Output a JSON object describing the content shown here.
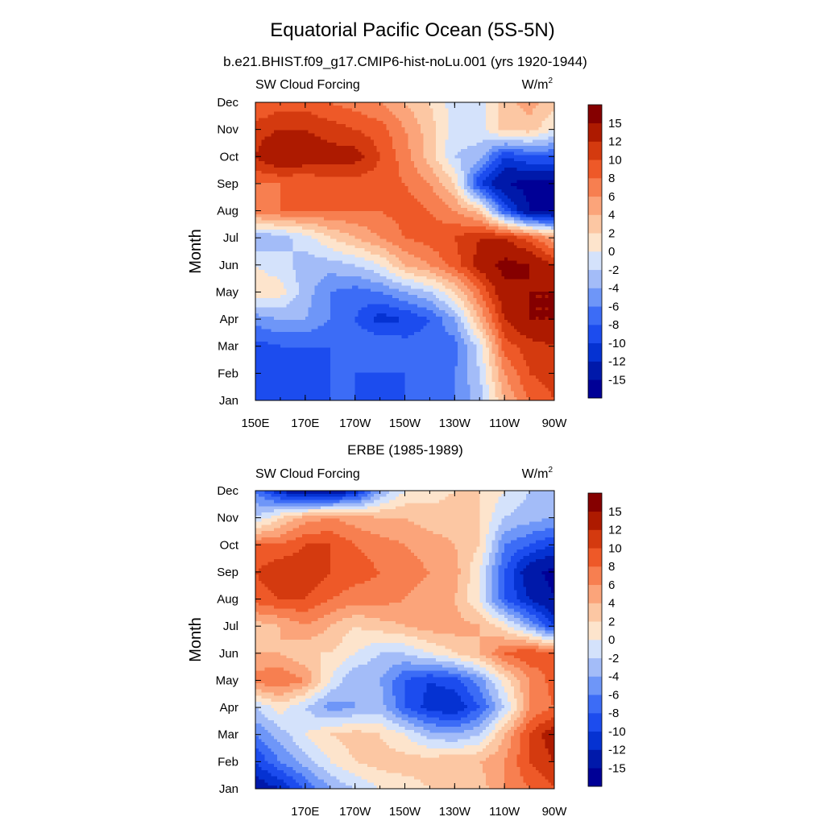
{
  "figure": {
    "title": "Equatorial Pacific Ocean (5S-5N)"
  },
  "chart_data": [
    {
      "type": "heatmap",
      "title": "b.e21.BHIST.f09_g17.CMIP6-hist-noLu.001 (yrs 1920-1944)",
      "left_label": "SW Cloud Forcing",
      "units": "W/m",
      "units_sup": "2",
      "ylabel": "Month",
      "xlabel": "",
      "x_ticks": [
        "150E",
        "170E",
        "170W",
        "150W",
        "130W",
        "110W",
        "90W"
      ],
      "x_tick_lon": [
        150,
        170,
        190,
        210,
        230,
        250,
        270
      ],
      "xlim_lon": [
        150,
        270
      ],
      "y_ticks": [
        "Jan",
        "Feb",
        "Mar",
        "Apr",
        "May",
        "Jun",
        "Jul",
        "Aug",
        "Sep",
        "Oct",
        "Nov",
        "Dec"
      ],
      "lon_grid": [
        150,
        160,
        170,
        180,
        190,
        200,
        210,
        220,
        230,
        240,
        250,
        260,
        270
      ],
      "values": [
        [
          -9,
          -10,
          -9,
          -8,
          -8,
          -9,
          -8,
          -8,
          -6,
          -3,
          4,
          8,
          10
        ],
        [
          -9,
          -10,
          -9,
          -8,
          -8,
          -8,
          -8,
          -8,
          -6,
          -2,
          6,
          10,
          11
        ],
        [
          -9,
          -8,
          -8,
          -8,
          -6,
          -6,
          -7,
          -7,
          -7,
          -1,
          9,
          11,
          12
        ],
        [
          -5,
          -4,
          -4,
          -6,
          -8,
          -11,
          -10,
          -8,
          -4,
          4,
          12,
          15,
          15
        ],
        [
          1,
          1,
          -3,
          -6,
          -7,
          -6,
          -4,
          -2,
          2,
          8,
          14,
          15,
          15
        ],
        [
          0,
          -1,
          -3,
          -3,
          -2,
          0,
          4,
          6,
          9,
          13,
          16,
          15,
          12
        ],
        [
          -4,
          -3,
          -1,
          2,
          4,
          6,
          8,
          9,
          10,
          12,
          12,
          9,
          5
        ],
        [
          7,
          8,
          8,
          8,
          8,
          8,
          9,
          8,
          6,
          3,
          -8,
          -15,
          -16
        ],
        [
          8,
          8,
          8,
          9,
          9,
          9,
          8,
          6,
          2,
          -10,
          -15,
          -16,
          -16
        ],
        [
          12,
          15,
          14,
          13,
          13,
          10,
          7,
          3,
          -2,
          -3,
          -10,
          -8,
          -8
        ],
        [
          11,
          12,
          12,
          11,
          10,
          9,
          6,
          3,
          -1,
          -1,
          3,
          3,
          0
        ],
        [
          8,
          9,
          9,
          8,
          7,
          6,
          4,
          2,
          -1,
          -1,
          3,
          5,
          3
        ]
      ],
      "contour_levels": [
        -15,
        -12,
        -10,
        -8,
        -6,
        -4,
        -2,
        0,
        2,
        4,
        6,
        8,
        10,
        12,
        15
      ],
      "colorbar_colors": [
        "#000096",
        "#0019aa",
        "#0532d2",
        "#1c4cee",
        "#3c6cf6",
        "#6e96f8",
        "#a3bcf8",
        "#d4e2fb",
        "#fde4cc",
        "#fcc7a3",
        "#fba47a",
        "#f77f50",
        "#ee5928",
        "#d43a0f",
        "#ad1a00",
        "#850000"
      ]
    },
    {
      "type": "heatmap",
      "title": "ERBE (1985-1989)",
      "left_label": "SW Cloud Forcing",
      "units": "W/m",
      "units_sup": "2",
      "ylabel": "Month",
      "xlabel": "",
      "x_ticks": [
        "170E",
        "170W",
        "150W",
        "130W",
        "110W",
        "90W"
      ],
      "x_tick_lon": [
        170,
        190,
        210,
        230,
        250,
        270
      ],
      "xlim_lon": [
        150,
        270
      ],
      "y_ticks": [
        "Jan",
        "Feb",
        "Mar",
        "Apr",
        "May",
        "Jun",
        "Jul",
        "Aug",
        "Sep",
        "Oct",
        "Nov",
        "Dec"
      ],
      "lon_grid": [
        150,
        160,
        170,
        180,
        190,
        200,
        210,
        220,
        230,
        240,
        250,
        260,
        270
      ],
      "values": [
        [
          -14,
          -12,
          -8,
          -4,
          -2,
          0,
          1,
          2,
          4,
          3,
          6,
          8,
          10
        ],
        [
          -10,
          -6,
          -3,
          0,
          2,
          3,
          3,
          3,
          4,
          4,
          6,
          10,
          12
        ],
        [
          -6,
          -3,
          0,
          2,
          3,
          2,
          0,
          -3,
          -4,
          -2,
          4,
          10,
          14
        ],
        [
          -2,
          1,
          -2,
          -5,
          -4,
          -3,
          -8,
          -11,
          -12,
          -8,
          -2,
          6,
          8
        ],
        [
          7,
          8,
          6,
          0,
          -4,
          -4,
          -8,
          -10,
          -9,
          -5,
          1,
          6,
          9
        ],
        [
          4,
          4,
          2,
          2,
          0,
          -2,
          -2,
          0,
          2,
          4,
          8,
          10,
          8
        ],
        [
          3,
          4,
          6,
          4,
          2,
          3,
          4,
          5,
          5,
          4,
          1,
          -4,
          -10
        ],
        [
          9,
          10,
          10,
          8,
          7,
          7,
          6,
          5,
          4,
          0,
          -8,
          -12,
          -15
        ],
        [
          10,
          12,
          12,
          10,
          9,
          8,
          7,
          6,
          5,
          0,
          -8,
          -14,
          -16
        ],
        [
          8,
          8,
          10,
          10,
          8,
          7,
          6,
          5,
          4,
          2,
          -6,
          -8,
          -10
        ],
        [
          -2,
          2,
          5,
          6,
          5,
          4,
          4,
          3,
          3,
          2,
          -2,
          -3,
          -4
        ],
        [
          -6,
          -12,
          -15,
          -15,
          -12,
          -4,
          0,
          1,
          2,
          2,
          0,
          -2,
          -3
        ]
      ],
      "contour_levels": [
        -15,
        -12,
        -10,
        -8,
        -6,
        -4,
        -2,
        0,
        2,
        4,
        6,
        8,
        10,
        12,
        15
      ],
      "colorbar_colors": [
        "#000096",
        "#0019aa",
        "#0532d2",
        "#1c4cee",
        "#3c6cf6",
        "#6e96f8",
        "#a3bcf8",
        "#d4e2fb",
        "#fde4cc",
        "#fcc7a3",
        "#fba47a",
        "#f77f50",
        "#ee5928",
        "#d43a0f",
        "#ad1a00",
        "#850000"
      ]
    }
  ]
}
